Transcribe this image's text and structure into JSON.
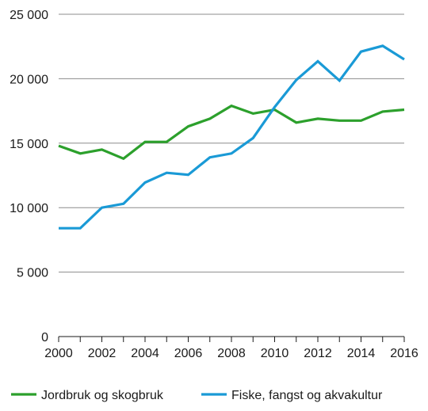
{
  "chart_data": {
    "type": "line",
    "title": "",
    "xlabel": "",
    "ylabel": "",
    "x": [
      2000,
      2001,
      2002,
      2003,
      2004,
      2005,
      2006,
      2007,
      2008,
      2009,
      2010,
      2011,
      2012,
      2013,
      2014,
      2015,
      2016
    ],
    "x_tick_labels": [
      "2000",
      "2002",
      "2004",
      "2006",
      "2008",
      "2010",
      "2012",
      "2014",
      "2016"
    ],
    "y_tick_labels": [
      "0",
      "5 000",
      "10 000",
      "15 000",
      "20 000",
      "25 000"
    ],
    "ylim": [
      0,
      25000
    ],
    "xlim": [
      2000,
      2016
    ],
    "grid": "horizontal",
    "legend_position": "bottom",
    "series": [
      {
        "name": "Jordbruk og skogbruk",
        "color": "#2ca02c",
        "values": [
          14800,
          14200,
          14500,
          13800,
          15100,
          15100,
          16300,
          16900,
          17900,
          17300,
          17600,
          16600,
          16900,
          16750,
          16750,
          17450,
          17600
        ]
      },
      {
        "name": "Fiske, fangst og akvakultur",
        "color": "#1a9ad6",
        "values": [
          8400,
          8400,
          10000,
          10300,
          11950,
          12700,
          12550,
          13900,
          14200,
          15400,
          17800,
          19900,
          21350,
          19850,
          22100,
          22550,
          21500
        ]
      }
    ]
  }
}
